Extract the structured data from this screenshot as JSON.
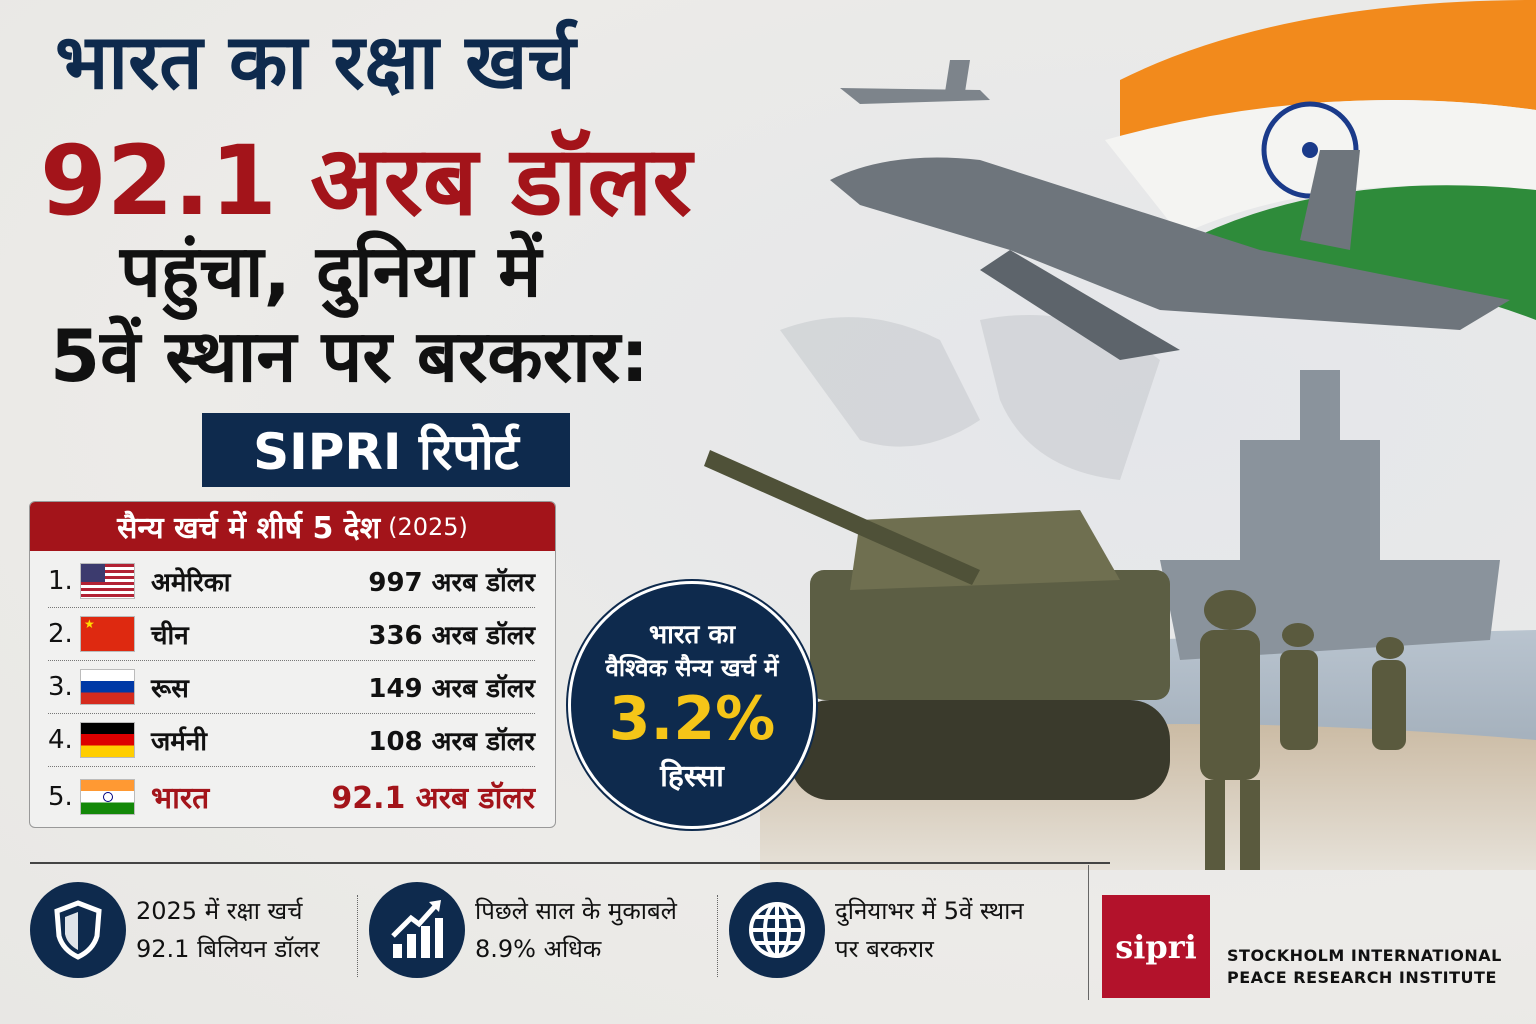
{
  "headline": {
    "line1": "भारत का रक्षा खर्च",
    "line2": "92.1 अरब डॉलर",
    "line3": "पहुंचा, दुनिया में",
    "line4": "5वें स्थान पर बरकरार:",
    "badge": "SIPRI रिपोर्ट"
  },
  "table": {
    "title": "सैन्य खर्च में शीर्ष 5 देश",
    "year": "(2025)",
    "rows": [
      {
        "rank": "1.",
        "flag": "usa-flag",
        "country": "अमेरिका",
        "value": "997 अरब डॉलर"
      },
      {
        "rank": "2.",
        "flag": "china-flag",
        "country": "चीन",
        "value": "336 अरब डॉलर"
      },
      {
        "rank": "3.",
        "flag": "russia-flag",
        "country": "रूस",
        "value": "149 अरब डॉलर"
      },
      {
        "rank": "4.",
        "flag": "germany-flag",
        "country": "जर्मनी",
        "value": "108 अरब डॉलर"
      },
      {
        "rank": "5.",
        "flag": "india-flag",
        "country": "भारत",
        "value": "92.1 अरब डॉलर"
      }
    ]
  },
  "share": {
    "line1": "भारत का",
    "line2": "वैश्विक सैन्य खर्च में",
    "value": "3.2%",
    "line3": "हिस्सा"
  },
  "features": [
    {
      "icon": "shield-icon",
      "line1": "2025 में रक्षा खर्च",
      "line2": "92.1 बिलियन डॉलर"
    },
    {
      "icon": "growth-chart-icon",
      "line1": "पिछले साल के मुकाबले",
      "line2": "8.9% अधिक"
    },
    {
      "icon": "globe-icon",
      "line1": "दुनियाभर में 5वें स्थान",
      "line2": "पर बरकरार"
    }
  ],
  "logo": {
    "mark": "sipri",
    "line1": "STOCKHOLM INTERNATIONAL",
    "line2": "PEACE RESEARCH INSTITUTE"
  },
  "colors": {
    "navy": "#0e2a4d",
    "red": "#a3141a",
    "gold": "#f5c518",
    "saffron": "#f28a1c",
    "green": "#2e8b3a"
  }
}
